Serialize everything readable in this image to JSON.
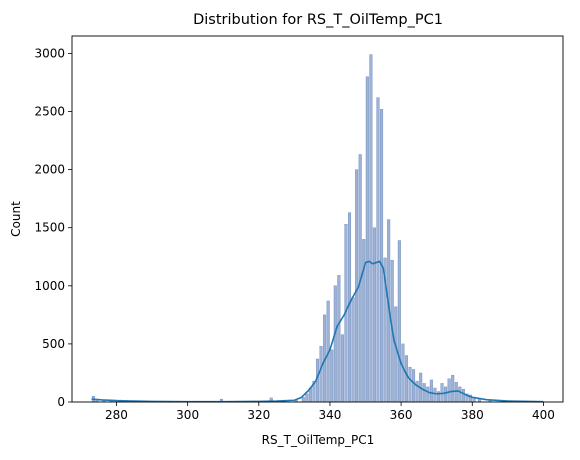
{
  "chart_data": {
    "type": "bar",
    "title": "Distribution for RS_T_OilTemp_PC1",
    "xlabel": "RS_T_OilTemp_PC1",
    "ylabel": "Count",
    "xlim": [
      267.5,
      405.5
    ],
    "ylim": [
      0,
      3150
    ],
    "xticks": [
      280,
      300,
      320,
      340,
      360,
      380,
      400
    ],
    "yticks": [
      0,
      500,
      1000,
      1500,
      2000,
      2500,
      3000
    ],
    "grid": false,
    "colors": {
      "bars": "#4c72b0",
      "kde": "#1f77b4"
    },
    "bar_width": 0.75,
    "bars": [
      [
        273.5,
        50
      ],
      [
        274.5,
        20
      ],
      [
        276.5,
        15
      ],
      [
        278.5,
        12
      ],
      [
        281,
        10
      ],
      [
        284,
        8
      ],
      [
        289,
        6
      ],
      [
        295,
        5
      ],
      [
        302,
        5
      ],
      [
        309.5,
        25
      ],
      [
        316,
        6
      ],
      [
        323.5,
        35
      ],
      [
        327,
        8
      ],
      [
        330.5,
        15
      ],
      [
        332.5,
        40
      ],
      [
        333.5,
        70
      ],
      [
        334.5,
        120
      ],
      [
        335.5,
        180
      ],
      [
        336.5,
        370
      ],
      [
        337.5,
        480
      ],
      [
        338.5,
        750
      ],
      [
        339.5,
        870
      ],
      [
        340.5,
        450
      ],
      [
        341.5,
        1000
      ],
      [
        342.5,
        1090
      ],
      [
        343.5,
        580
      ],
      [
        344.5,
        1530
      ],
      [
        345.5,
        1630
      ],
      [
        346.5,
        900
      ],
      [
        347.5,
        2000
      ],
      [
        348.5,
        2130
      ],
      [
        349.5,
        1400
      ],
      [
        350.5,
        2800
      ],
      [
        351.5,
        2990
      ],
      [
        352.5,
        1500
      ],
      [
        353.5,
        2620
      ],
      [
        354.5,
        2520
      ],
      [
        355.5,
        1240
      ],
      [
        356.5,
        1570
      ],
      [
        357.5,
        1220
      ],
      [
        358.5,
        820
      ],
      [
        359.5,
        1390
      ],
      [
        360.5,
        500
      ],
      [
        361.5,
        400
      ],
      [
        362.5,
        300
      ],
      [
        363.5,
        280
      ],
      [
        364.5,
        180
      ],
      [
        365.5,
        250
      ],
      [
        366.5,
        160
      ],
      [
        367.5,
        130
      ],
      [
        368.5,
        190
      ],
      [
        369.5,
        120
      ],
      [
        370.5,
        90
      ],
      [
        371.5,
        160
      ],
      [
        372.5,
        130
      ],
      [
        373.5,
        200
      ],
      [
        374.5,
        230
      ],
      [
        375.5,
        170
      ],
      [
        376.5,
        130
      ],
      [
        377.5,
        110
      ],
      [
        378.5,
        70
      ],
      [
        379.5,
        60
      ],
      [
        380.5,
        40
      ],
      [
        382,
        25
      ],
      [
        385,
        15
      ],
      [
        389,
        10
      ],
      [
        394,
        6
      ],
      [
        399.5,
        5
      ]
    ],
    "kde": {
      "x": [
        273,
        276,
        280,
        285,
        290,
        300,
        310,
        320,
        325,
        330,
        332,
        334,
        336,
        338,
        340,
        342,
        344,
        346,
        348,
        350,
        351,
        352,
        353,
        354,
        355,
        356,
        357,
        358,
        360,
        362,
        364,
        366,
        368,
        370,
        372,
        374,
        376,
        378,
        380,
        384,
        390,
        400
      ],
      "y": [
        25,
        18,
        12,
        8,
        5,
        3,
        3,
        5,
        8,
        15,
        40,
        100,
        180,
        330,
        450,
        650,
        750,
        880,
        990,
        1200,
        1210,
        1190,
        1200,
        1210,
        1150,
        940,
        720,
        530,
        330,
        210,
        150,
        110,
        80,
        70,
        75,
        90,
        95,
        65,
        40,
        20,
        8,
        3
      ]
    }
  }
}
